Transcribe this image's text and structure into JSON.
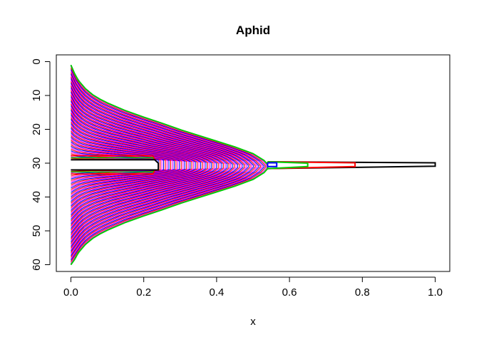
{
  "chart_data": {
    "type": "line",
    "title": "Aphid",
    "xlabel": "x",
    "ylabel": "",
    "xlim": [
      -0.04,
      1.04
    ],
    "ylim": [
      62,
      -2
    ],
    "y_reversed": true,
    "x_ticks": [
      0.0,
      0.2,
      0.4,
      0.6,
      0.8,
      1.0
    ],
    "x_tick_labels": [
      "0.0",
      "0.2",
      "0.4",
      "0.6",
      "0.8",
      "1.0"
    ],
    "y_ticks": [
      0,
      10,
      20,
      30,
      40,
      50,
      60
    ],
    "y_tick_labels": [
      "0",
      "10",
      "20",
      "30",
      "40",
      "50",
      "60"
    ],
    "grid": false,
    "legend": "none",
    "series_colors": [
      "#000000",
      "#ff0000",
      "#00cd00",
      "#0000ff",
      "#ff00ff"
    ],
    "outer_envelope": {
      "color": "#00cd00",
      "points": [
        [
          0.0,
          1
        ],
        [
          0.01,
          3.5
        ],
        [
          0.02,
          5.5
        ],
        [
          0.04,
          8
        ],
        [
          0.06,
          9.8
        ],
        [
          0.08,
          11.1
        ],
        [
          0.1,
          12.2
        ],
        [
          0.15,
          14.5
        ],
        [
          0.2,
          16.4
        ],
        [
          0.25,
          18.2
        ],
        [
          0.3,
          20.1
        ],
        [
          0.35,
          21.8
        ],
        [
          0.4,
          23.5
        ],
        [
          0.45,
          25.2
        ],
        [
          0.5,
          27.2
        ],
        [
          0.53,
          29.2
        ],
        [
          0.545,
          31
        ],
        [
          0.53,
          32.8
        ],
        [
          0.5,
          34.8
        ],
        [
          0.45,
          36.8
        ],
        [
          0.4,
          38.5
        ],
        [
          0.35,
          40.2
        ],
        [
          0.3,
          41.9
        ],
        [
          0.25,
          43.8
        ],
        [
          0.2,
          45.6
        ],
        [
          0.15,
          47.5
        ],
        [
          0.1,
          49.8
        ],
        [
          0.08,
          50.9
        ],
        [
          0.06,
          52.2
        ],
        [
          0.04,
          54
        ],
        [
          0.02,
          56.5
        ],
        [
          0.01,
          58.5
        ],
        [
          0.0,
          60
        ]
      ]
    },
    "inner_envelope": {
      "color": "#000000",
      "points": [
        [
          0.0,
          29
        ],
        [
          0.23,
          29
        ],
        [
          0.24,
          30
        ],
        [
          0.24,
          32
        ],
        [
          0.23,
          32
        ],
        [
          0.0,
          32
        ]
      ]
    },
    "contour_fill_colors": [
      "#0000ff",
      "#ff00ff",
      "#ff0000"
    ],
    "rectangles": [
      {
        "color": "#000000",
        "x0": 0.54,
        "x1": 1.0,
        "y_left": [
          29.6,
          31.6
        ],
        "y_right": [
          29.9,
          30.9
        ]
      },
      {
        "color": "#ff0000",
        "x0": 0.54,
        "x1": 0.78,
        "y_left": [
          29.6,
          31.6
        ],
        "y_right": [
          29.9,
          31.0
        ]
      },
      {
        "color": "#00cd00",
        "x0": 0.54,
        "x1": 0.65,
        "y_left": [
          29.6,
          31.6
        ],
        "y_right": [
          30.0,
          31.0
        ]
      },
      {
        "color": "#0000ff",
        "x0": 0.54,
        "x1": 0.565,
        "y_left": [
          29.9,
          31.0
        ],
        "y_right": [
          29.9,
          31.0
        ]
      }
    ]
  }
}
